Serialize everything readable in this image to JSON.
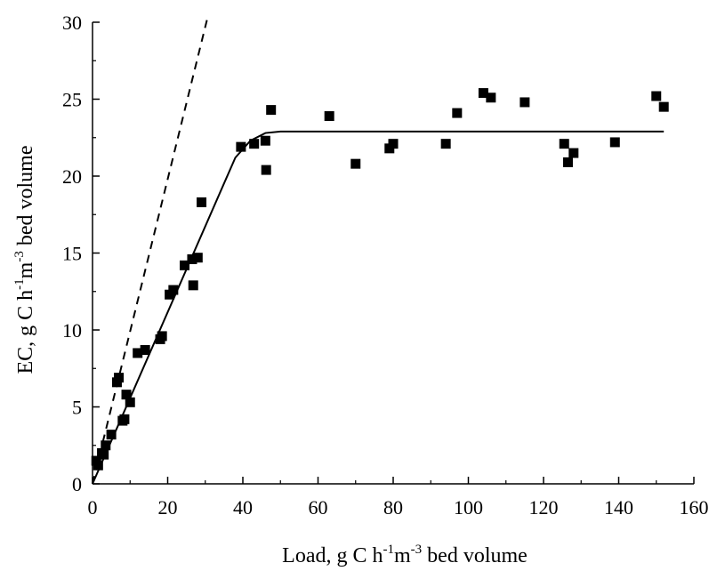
{
  "chart_data": {
    "type": "scatter",
    "xlabel": {
      "pre": "Load, g C h",
      "sup1": "-1",
      "mid": "m",
      "sup2": "-3",
      "post": " bed volume"
    },
    "ylabel": {
      "pre": "EC, g C h",
      "sup1": "-1",
      "mid": "m",
      "sup2": "-3",
      "post": " bed volume"
    },
    "xlim": [
      0,
      160
    ],
    "ylim": [
      0,
      30
    ],
    "xticks": [
      "0",
      "20",
      "40",
      "60",
      "80",
      "100",
      "120",
      "140",
      "160"
    ],
    "yticks": [
      "0",
      "5",
      "10",
      "15",
      "20",
      "25",
      "30"
    ],
    "grid": false,
    "series": [
      {
        "marker": "square",
        "color": "#000000",
        "x": [
          1,
          1.5,
          2.5,
          3,
          3.5,
          5,
          6.5,
          7,
          8,
          8.5,
          9,
          10,
          12,
          14,
          18,
          18.5,
          20.5,
          21.5,
          24.5,
          26.5,
          26.8,
          28,
          29,
          39.5,
          43,
          46,
          46.2,
          47.5,
          63,
          70,
          79,
          80,
          94,
          97,
          104,
          106,
          115,
          125.5,
          126.5,
          128,
          139,
          150,
          152
        ],
        "y": [
          1.5,
          1.2,
          2,
          1.9,
          2.5,
          3.2,
          6.6,
          6.9,
          4.1,
          4.2,
          5.8,
          5.3,
          8.5,
          8.7,
          9.4,
          9.6,
          12.3,
          12.6,
          14.2,
          14.6,
          12.9,
          14.7,
          18.3,
          21.9,
          22.1,
          22.3,
          20.4,
          24.3,
          23.9,
          20.8,
          21.8,
          22.1,
          22.1,
          24.1,
          25.4,
          25.1,
          24.8,
          22.1,
          20.9,
          21.5,
          22.2,
          25.2,
          24.5
        ]
      },
      {
        "style": "solid",
        "color": "#000000",
        "x": [
          0,
          38,
          42,
          46,
          50,
          60,
          100,
          152
        ],
        "y": [
          0,
          21.2,
          22.3,
          22.8,
          22.9,
          22.9,
          22.9,
          22.9
        ]
      },
      {
        "style": "dashed",
        "color": "#000000",
        "x": [
          0,
          30.5
        ],
        "y": [
          0,
          30.2
        ]
      }
    ]
  }
}
